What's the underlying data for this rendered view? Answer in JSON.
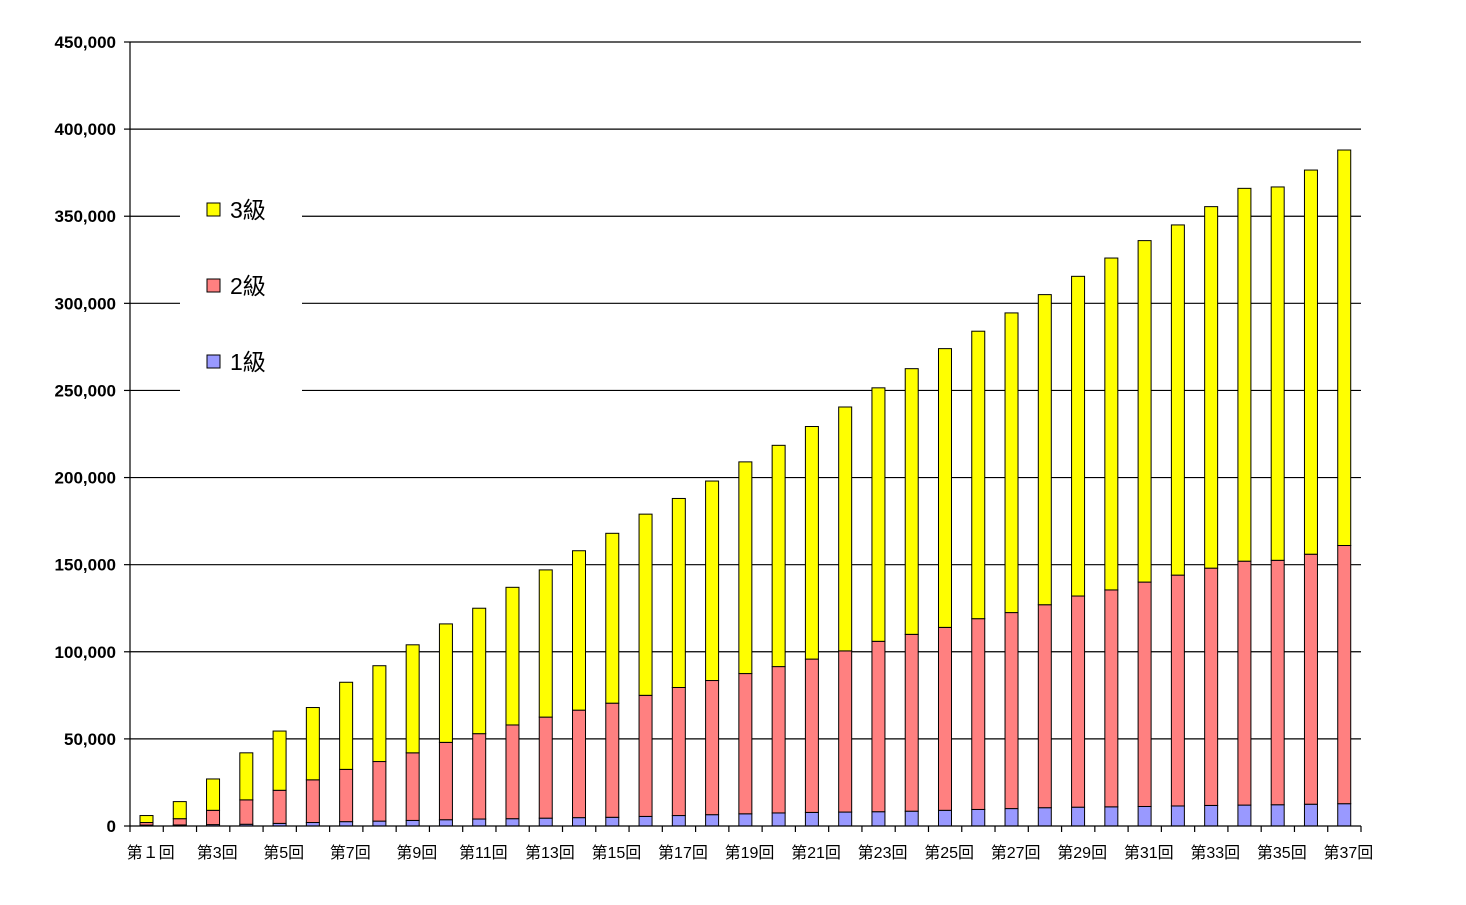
{
  "chart_data": {
    "type": "bar",
    "stacked": true,
    "title": "",
    "xlabel": "",
    "ylabel": "",
    "ylim": [
      0,
      450000
    ],
    "y_ticks": [
      0,
      50000,
      100000,
      150000,
      200000,
      250000,
      300000,
      350000,
      400000,
      450000
    ],
    "y_tick_labels": [
      "0",
      "50,000",
      "100,000",
      "150,000",
      "200,000",
      "250,000",
      "300,000",
      "350,000",
      "400,000",
      "450,000"
    ],
    "grid": true,
    "legend_position": "upper-left inside plot",
    "categories": [
      "第1回",
      "第2回",
      "第3回",
      "第4回",
      "第5回",
      "第6回",
      "第7回",
      "第8回",
      "第9回",
      "第10回",
      "第11回",
      "第12回",
      "第13回",
      "第14回",
      "第15回",
      "第16回",
      "第17回",
      "第18回",
      "第19回",
      "第20回",
      "第21回",
      "第22回",
      "第23回",
      "第24回",
      "第25回",
      "第26回",
      "第27回",
      "第28回",
      "第29回",
      "第30回",
      "第31回",
      "第32回",
      "第33回",
      "第34回",
      "第35回",
      "第36回",
      "第37回"
    ],
    "tick_labels_shown": [
      "第１回",
      "第3回",
      "第5回",
      "第7回",
      "第9回",
      "第11回",
      "第13回",
      "第15回",
      "第17回",
      "第19回",
      "第21回",
      "第23回",
      "第25回",
      "第27回",
      "第29回",
      "第31回",
      "第33回",
      "第35回",
      "第37回"
    ],
    "series": [
      {
        "name": "1級",
        "color": "#9999ff",
        "values": [
          500,
          600,
          800,
          1000,
          1500,
          2000,
          2500,
          2800,
          3200,
          3600,
          4000,
          4200,
          4500,
          4800,
          5000,
          5500,
          6000,
          6500,
          7000,
          7500,
          7800,
          8000,
          8200,
          8500,
          9000,
          9500,
          10000,
          10500,
          10800,
          11000,
          11200,
          11500,
          11800,
          12000,
          12200,
          12500,
          12800
        ]
      },
      {
        "name": "2級",
        "color": "#ff8080",
        "values": [
          1500,
          3600,
          8200,
          14000,
          19000,
          24500,
          30000,
          34200,
          38800,
          44400,
          49000,
          53800,
          58000,
          61700,
          65500,
          69500,
          73500,
          77000,
          80500,
          84000,
          88000,
          92500,
          97800,
          101500,
          105000,
          109500,
          112500,
          116500,
          121200,
          124500,
          128800,
          132500,
          136200,
          140000,
          140300,
          143500,
          148200
        ]
      },
      {
        "name": "3級",
        "color": "#ffff00",
        "values": [
          4000,
          9800,
          18000,
          27000,
          34000,
          41500,
          50000,
          55000,
          62000,
          68000,
          72000,
          79000,
          84500,
          91500,
          97500,
          104000,
          108500,
          114500,
          121500,
          127000,
          133500,
          140000,
          145500,
          152500,
          160000,
          165000,
          172000,
          178000,
          183500,
          190500,
          196000,
          201000,
          207500,
          214000,
          214300,
          220500,
          227000
        ]
      }
    ]
  }
}
